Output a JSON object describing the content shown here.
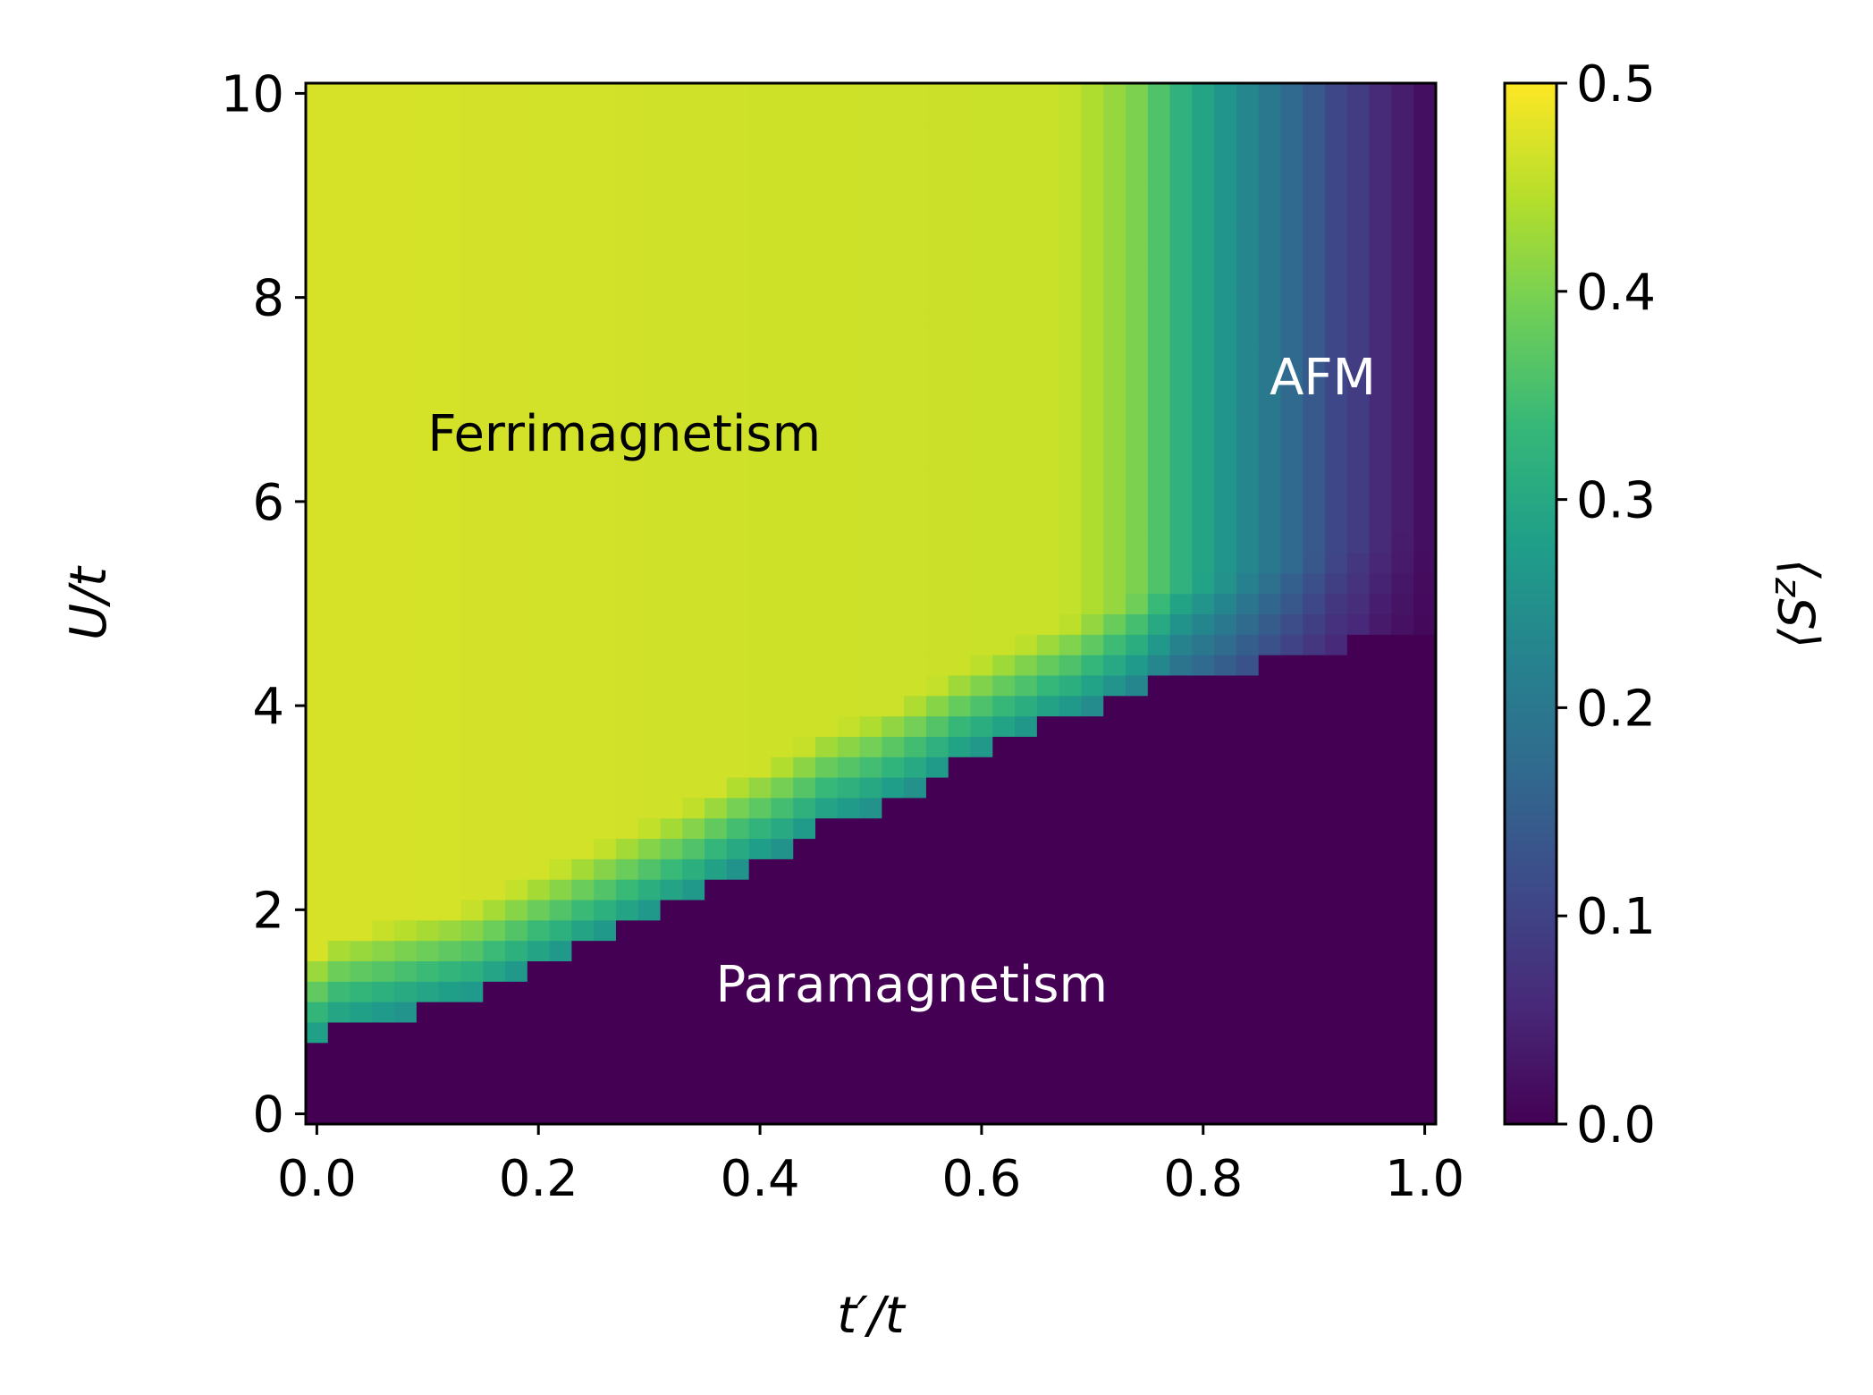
{
  "chart_data": {
    "type": "heatmap",
    "title": "",
    "xlabel": "t′/t",
    "ylabel": "U/t",
    "colorbar_label": "⟨S^z⟩",
    "xlim": [
      -0.01,
      1.01
    ],
    "ylim": [
      -0.1,
      10.1
    ],
    "xticks": [
      0.0,
      0.2,
      0.4,
      0.6,
      0.8,
      1.0
    ],
    "xtick_labels": [
      "0.0",
      "0.2",
      "0.4",
      "0.6",
      "0.8",
      "1.0"
    ],
    "yticks": [
      0,
      2,
      4,
      6,
      8,
      10
    ],
    "ytick_labels": [
      "0",
      "2",
      "4",
      "6",
      "8",
      "10"
    ],
    "colorbar_ticks": [
      0.0,
      0.1,
      0.2,
      0.3,
      0.4,
      0.5
    ],
    "colorbar_tick_labels": [
      "0.0",
      "0.1",
      "0.2",
      "0.3",
      "0.4",
      "0.5"
    ],
    "vmin": 0.0,
    "vmax": 0.5,
    "colormap": "viridis",
    "grid": false,
    "x_range": [
      0.0,
      1.0
    ],
    "y_range": [
      0.0,
      10.0
    ],
    "nx": 51,
    "ny": 51,
    "phase_boundary": {
      "x": [
        0.0,
        0.02,
        0.06,
        0.1,
        0.14,
        0.18,
        0.22,
        0.26,
        0.3,
        0.34,
        0.38,
        0.42,
        0.46,
        0.5,
        0.54,
        0.58,
        0.62,
        0.66,
        0.7,
        0.74,
        0.78,
        0.82,
        0.86,
        0.9,
        0.94,
        0.98,
        1.0
      ],
      "y": [
        0.7,
        0.85,
        0.95,
        1.05,
        1.15,
        1.35,
        1.55,
        1.75,
        1.95,
        2.15,
        2.4,
        2.6,
        2.85,
        3.0,
        3.2,
        3.45,
        3.65,
        3.85,
        4.0,
        4.15,
        4.3,
        4.35,
        4.45,
        4.55,
        4.65,
        4.75,
        4.75
      ]
    },
    "magnetization_vs_x": {
      "x": [
        0.0,
        0.66,
        0.68,
        0.7,
        0.72,
        0.74,
        0.76,
        0.78,
        0.8,
        0.82,
        0.84,
        0.86,
        0.88,
        0.9,
        0.92,
        0.94,
        0.96,
        0.98,
        1.0
      ],
      "value": [
        0.47,
        0.46,
        0.455,
        0.44,
        0.42,
        0.4,
        0.36,
        0.32,
        0.29,
        0.26,
        0.23,
        0.2,
        0.17,
        0.14,
        0.11,
        0.09,
        0.06,
        0.04,
        0.02
      ]
    },
    "onset_width": 0.9,
    "annotations": [
      {
        "text": "Ferrimagnetism",
        "x": 0.1,
        "y": 6.5,
        "color": "#000000"
      },
      {
        "text": "AFM",
        "x": 0.86,
        "y": 7.05,
        "color": "#ffffff"
      },
      {
        "text": "Paramagnetism",
        "x": 0.36,
        "y": 1.1,
        "color": "#ffffff"
      }
    ],
    "viridis": [
      "#440154",
      "#482878",
      "#3e4989",
      "#31688e",
      "#26828e",
      "#1f9e89",
      "#35b779",
      "#6ece58",
      "#b5de2b",
      "#fde725"
    ]
  }
}
